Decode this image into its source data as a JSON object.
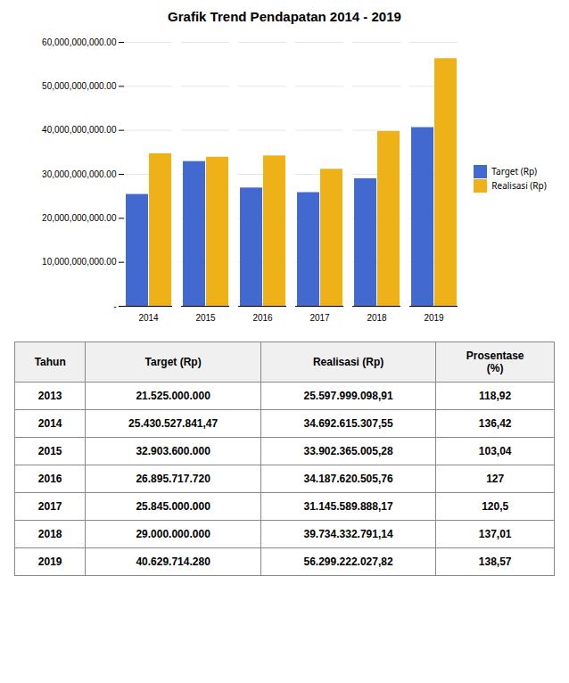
{
  "chart_data": [
    {
      "type": "bar",
      "title": "Grafik Trend Pendapatan 2014 - 2019",
      "categories": [
        "2014",
        "2015",
        "2016",
        "2017",
        "2018",
        "2019"
      ],
      "series": [
        {
          "name": "Target (Rp)",
          "values": [
            25430527841.47,
            32903600000,
            26895717720,
            25845000000,
            29000000000,
            40629714280
          ]
        },
        {
          "name": "Realisasi (Rp)",
          "values": [
            34692615307.55,
            33902365005.28,
            34187620505.76,
            31145589888.17,
            39734332791.14,
            56299222027.82
          ]
        }
      ],
      "ylim": [
        0,
        60000000000
      ],
      "yticks": [
        {
          "value": 0,
          "label": "-"
        },
        {
          "value": 10000000000,
          "label": "10,000,000,000.00"
        },
        {
          "value": 20000000000,
          "label": "20,000,000,000.00"
        },
        {
          "value": 30000000000,
          "label": "30,000,000,000.00"
        },
        {
          "value": 40000000000,
          "label": "40,000,000,000.00"
        },
        {
          "value": 50000000000,
          "label": "50,000,000,000.00"
        },
        {
          "value": 60000000000,
          "label": "60,000,000,000.00"
        }
      ],
      "grid": true,
      "legend": "right"
    },
    {
      "type": "table",
      "columns": [
        "Tahun",
        "Target (Rp)",
        "Realisasi (Rp)",
        "Prosentase\n(%)"
      ],
      "rows": [
        [
          "2013",
          "21.525.000.000",
          "25.597.999.098,91",
          "118,92"
        ],
        [
          "2014",
          "25.430.527.841,47",
          "34.692.615.307,55",
          "136,42"
        ],
        [
          "2015",
          "32.903.600.000",
          "33.902.365.005,28",
          "103,04"
        ],
        [
          "2016",
          "26.895.717.720",
          "34.187.620.505,76",
          "127"
        ],
        [
          "2017",
          "25.845.000.000",
          "31.145.589.888,17",
          "120,5"
        ],
        [
          "2018",
          "29.000.000.000",
          "39.734.332.791,14",
          "137,01"
        ],
        [
          "2019",
          "40.629.714.280",
          "56.299.222.027,82",
          "138,57"
        ]
      ]
    }
  ]
}
